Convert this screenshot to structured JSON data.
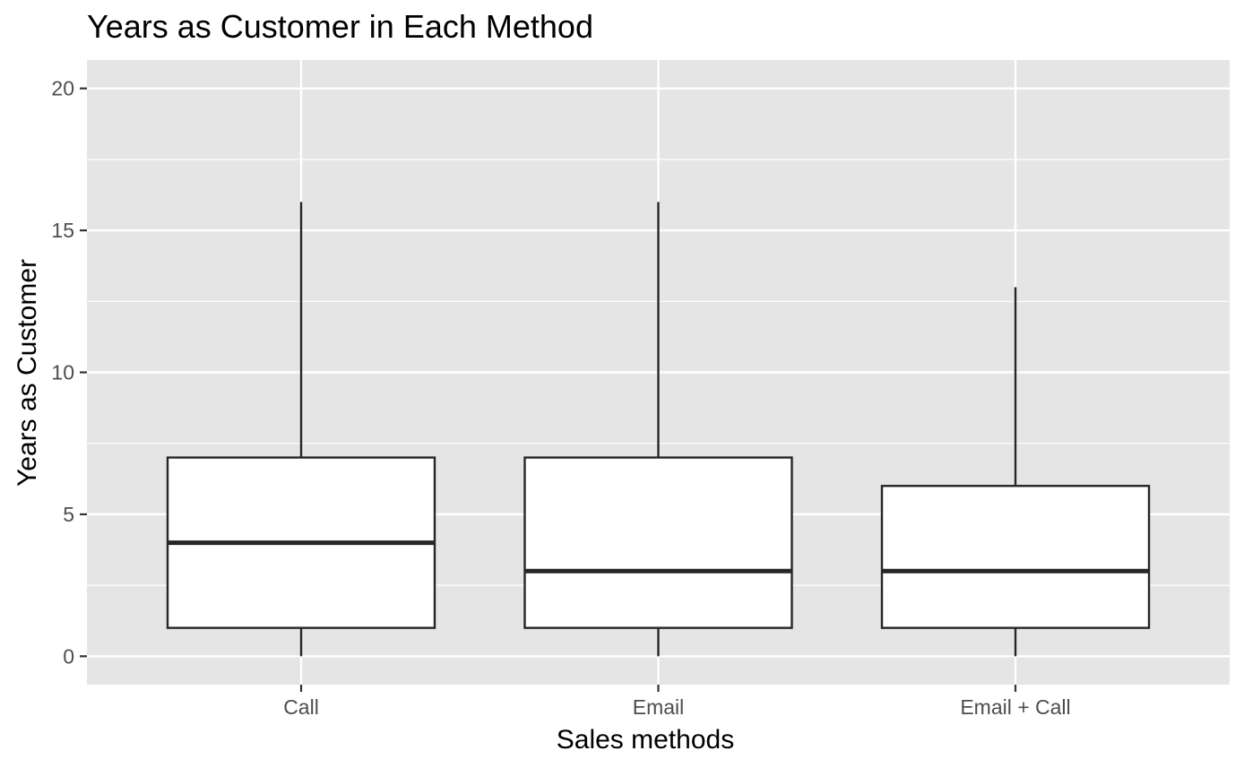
{
  "chart_data": {
    "type": "boxplot",
    "title": "Years as Customer in Each Method",
    "xlabel": "Sales methods",
    "ylabel": "Years as Customer",
    "categories": [
      "Call",
      "Email",
      "Email + Call"
    ],
    "boxes": [
      {
        "category": "Call",
        "min": 0,
        "q1": 1,
        "median": 4,
        "q3": 7,
        "max": 16
      },
      {
        "category": "Email",
        "min": 0,
        "q1": 1,
        "median": 3,
        "q3": 7,
        "max": 16
      },
      {
        "category": "Email + Call",
        "min": 0,
        "q1": 1,
        "median": 3,
        "q3": 6,
        "max": 13
      }
    ],
    "y_ticks": [
      0,
      5,
      10,
      15,
      20
    ],
    "y_tick_labels": [
      "0",
      "5",
      "10",
      "15",
      "20"
    ],
    "ylim": [
      -1,
      21
    ],
    "grid": true,
    "legend": "none",
    "colors": {
      "panel_background": "#e5e5e5",
      "grid_line": "#ffffff",
      "box_fill": "#ffffff",
      "box_stroke": "#262626",
      "tick_mark": "#333333"
    }
  }
}
